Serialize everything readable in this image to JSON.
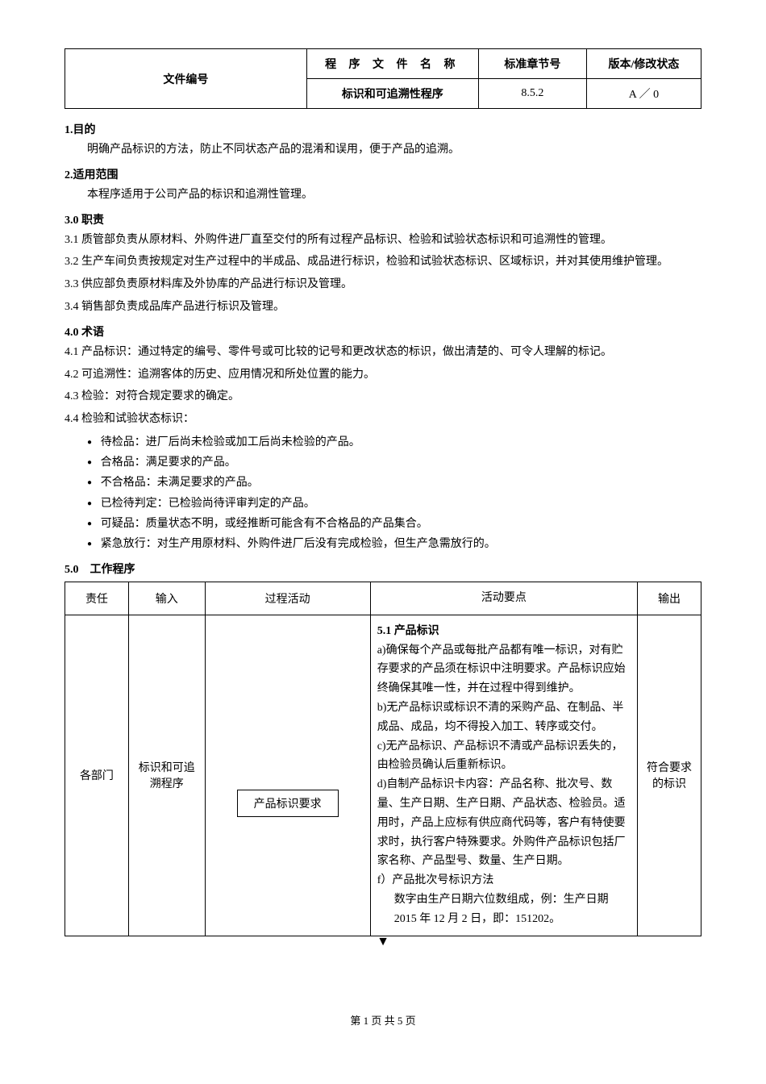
{
  "header": {
    "docNoLabel": "文件编号",
    "procNameLabel": "程 序 文 件 名 称",
    "chapterLabel": "标准章节号",
    "verLabel": "版本/修改状态",
    "procName": "标识和可追溯性程序",
    "chapter": "8.5.2",
    "version": "A ／ 0"
  },
  "sections": {
    "s1_title": "1.目的",
    "s1_text": "明确产品标识的方法，防止不同状态产品的混淆和误用，便于产品的追溯。",
    "s2_title": "2.适用范围",
    "s2_text": "本程序适用于公司产品的标识和追溯性管理。",
    "s3_title": "3.0 职责",
    "s3_1": "3.1 质管部负责从原材料、外购件进厂直至交付的所有过程产品标识、检验和试验状态标识和可追溯性的管理。",
    "s3_2": "3.2 生产车间负责按规定对生产过程中的半成品、成品进行标识，检验和试验状态标识、区域标识，并对其使用维护管理。",
    "s3_3": "3.3 供应部负责原材料库及外协库的产品进行标识及管理。",
    "s3_4": "3.4 销售部负责成品库产品进行标识及管理。",
    "s4_title": "4.0 术语",
    "s4_1": "4.1 产品标识：通过特定的编号、零件号或可比较的记号和更改状态的标识，做出清楚的、可令人理解的标记。",
    "s4_2": "4.2 可追溯性：追溯客体的历史、应用情况和所处位置的能力。",
    "s4_3": "4.3 检验：对符合规定要求的确定。",
    "s4_4": "4.4 检验和试验状态标识：",
    "s4_b1": "待检品：进厂后尚未检验或加工后尚未检验的产品。",
    "s4_b2": "合格品：满足要求的产品。",
    "s4_b3": "不合格品：未满足要求的产品。",
    "s4_b4": "已检待判定：已检验尚待评审判定的产品。",
    "s4_b5": "可疑品：质量状态不明，或经推断可能含有不合格品的产品集合。",
    "s4_b6": "紧急放行：对生产用原材料、外购件进厂后没有完成检验，但生产急需放行的。",
    "s5_title": "5.0　工作程序"
  },
  "procTable": {
    "headers": {
      "resp": "责任",
      "input": "输入",
      "activity": "过程活动",
      "points": "活动要点",
      "output": "输出"
    },
    "row": {
      "resp": "各部门",
      "input": "标识和可追溯程序",
      "activityBox": "产品标识要求",
      "pointsTitle": "5.1 产品标识",
      "p_a": "a)确保每个产品或每批产品都有唯一标识，对有贮存要求的产品须在标识中注明要求。产品标识应始终确保其唯一性，并在过程中得到维护。",
      "p_b": "b)无产品标识或标识不清的采购产品、在制品、半成品、成品，均不得投入加工、转序或交付。",
      "p_c": "c)无产品标识、产品标识不清或产品标识丢失的，由检验员确认后重新标识。",
      "p_d": "d)自制产品标识卡内容：产品名称、批次号、数量、生产日期、生产日期、产品状态、检验员。适用时，产品上应标有供应商代码等，客户有特使要求时，执行客户特殊要求。外购件产品标识包括厂家名称、产品型号、数量、生产日期。",
      "p_f": "f）产品批次号标识方法",
      "p_f_sub": "数字由生产日期六位数组成，例：生产日期2015 年 12 月 2 日，即：151202。",
      "output": "符合要求的标识"
    }
  },
  "footer": "第 1 页 共 5 页"
}
